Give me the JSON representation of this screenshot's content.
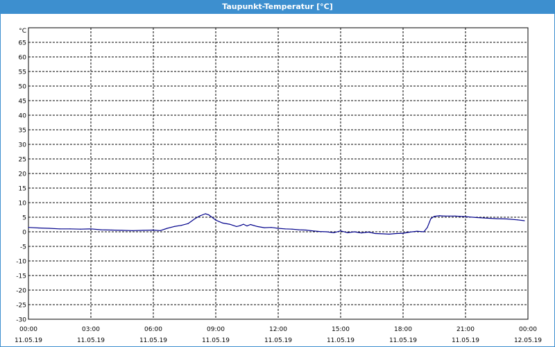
{
  "window": {
    "title": "Taupunkt-Temperatur [°C]"
  },
  "chart_data": {
    "type": "line",
    "title": "Taupunkt-Temperatur [°C]",
    "ylabel": "°C",
    "xlabel": "",
    "ylim": [
      -30,
      65
    ],
    "y_ticks": [
      65,
      60,
      55,
      50,
      45,
      40,
      35,
      30,
      25,
      20,
      15,
      10,
      5,
      0,
      -5,
      -10,
      -15,
      -20,
      -25,
      -30
    ],
    "x_range_hours": [
      0,
      24
    ],
    "x_ticks": [
      {
        "time": "00:00",
        "date": "11.05.19"
      },
      {
        "time": "03:00",
        "date": "11.05.19"
      },
      {
        "time": "06:00",
        "date": "11.05.19"
      },
      {
        "time": "09:00",
        "date": "11.05.19"
      },
      {
        "time": "12:00",
        "date": "11.05.19"
      },
      {
        "time": "15:00",
        "date": "11.05.19"
      },
      {
        "time": "18:00",
        "date": "11.05.19"
      },
      {
        "time": "21:00",
        "date": "11.05.19"
      },
      {
        "time": "00:00",
        "date": "12.05.19"
      }
    ],
    "grid": true,
    "colors": {
      "line": "#00008b",
      "grid": "#000000",
      "title_bar": "#3d8fcf"
    },
    "series": [
      {
        "x": [
          "00:00",
          "00:30",
          "01:00",
          "01:30",
          "02:00",
          "02:30",
          "03:00",
          "03:30",
          "04:00",
          "04:30",
          "05:00",
          "05:30",
          "06:00",
          "06:20",
          "06:40",
          "07:00",
          "07:20",
          "07:40",
          "08:00",
          "08:15",
          "08:30",
          "08:40",
          "09:00",
          "09:20",
          "09:40",
          "10:00",
          "10:10",
          "10:20",
          "10:30",
          "10:40",
          "11:00",
          "11:20",
          "11:40",
          "12:00",
          "12:20",
          "12:40",
          "13:00",
          "13:20",
          "13:40",
          "14:00",
          "14:20",
          "14:40",
          "15:00",
          "15:20",
          "15:40",
          "16:00",
          "16:20",
          "16:40",
          "17:00",
          "17:20",
          "17:40",
          "18:00",
          "18:20",
          "18:40",
          "19:00",
          "19:10",
          "19:20",
          "19:30",
          "19:45",
          "20:00",
          "20:30",
          "21:00",
          "21:30",
          "22:00",
          "22:30",
          "23:00",
          "23:30",
          "23:50"
        ],
        "y": [
          1.5,
          1.3,
          1.2,
          1.0,
          1.0,
          0.9,
          1.0,
          0.7,
          0.6,
          0.5,
          0.4,
          0.5,
          0.6,
          0.4,
          1.2,
          1.8,
          2.2,
          2.8,
          4.5,
          5.5,
          6.2,
          5.8,
          4.0,
          3.0,
          2.6,
          1.8,
          2.1,
          2.6,
          2.0,
          2.5,
          1.8,
          1.4,
          1.5,
          1.2,
          1.0,
          0.9,
          0.7,
          0.6,
          0.3,
          0.1,
          0.0,
          -0.3,
          0.3,
          -0.3,
          0.0,
          -0.4,
          -0.1,
          -0.6,
          -0.7,
          -0.8,
          -0.6,
          -0.5,
          -0.1,
          0.2,
          0.0,
          1.5,
          4.5,
          5.3,
          5.5,
          5.4,
          5.4,
          5.2,
          4.9,
          4.7,
          4.5,
          4.4,
          4.1,
          3.8
        ]
      }
    ]
  }
}
